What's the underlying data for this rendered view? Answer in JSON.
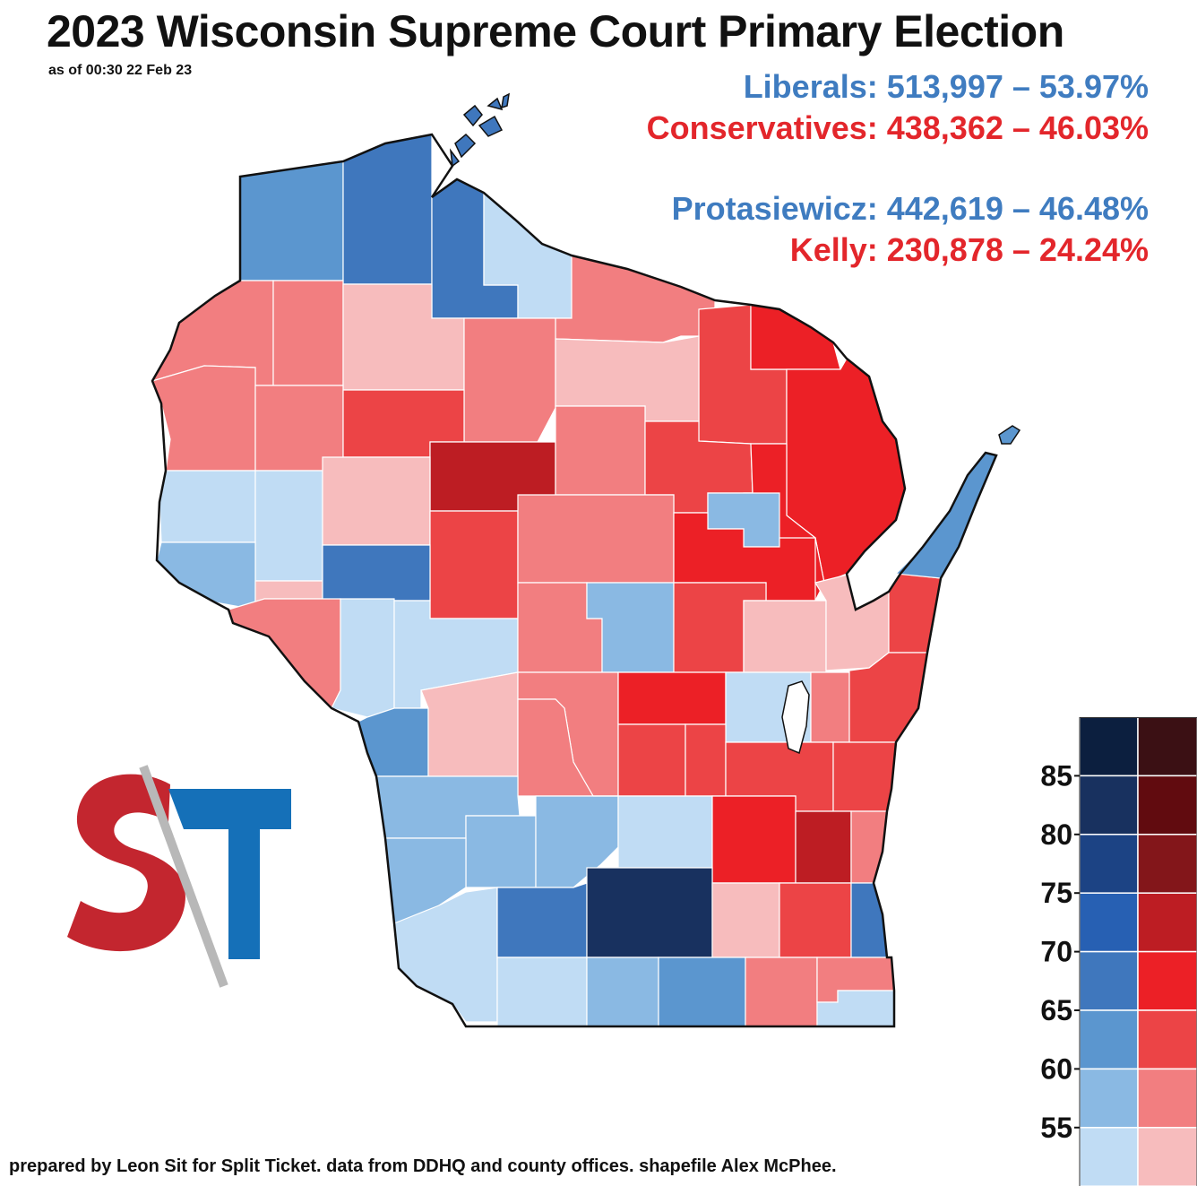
{
  "header": {
    "title": "2023 Wisconsin Supreme Court Primary Election",
    "as_of": "as of 00:30 22 Feb 23"
  },
  "results": [
    {
      "label": "Liberals: 513,997 – 53.97%",
      "party": "blue"
    },
    {
      "label": "Conservatives: 438,362 – 46.03%",
      "party": "red"
    },
    {
      "label": "Protasiewicz: 442,619 – 46.48%",
      "party": "blue"
    },
    {
      "label": "Kelly: 230,878 – 24.24%",
      "party": "red"
    }
  ],
  "legend": {
    "ticks": [
      "85",
      "80",
      "75",
      "70",
      "65",
      "60",
      "55"
    ],
    "blue_scale": [
      "#0c1f3f",
      "#18315f",
      "#1c4384",
      "#2760b3",
      "#3f77bd",
      "#5b96cf",
      "#8ab9e3",
      "#c0dcf4"
    ],
    "red_scale": [
      "#3b1014",
      "#610b0f",
      "#83161a",
      "#bd1d23",
      "#ec2026",
      "#ec4446",
      "#f27e80",
      "#f7bcbd"
    ]
  },
  "logo": {
    "text": "ST"
  },
  "footer": "prepared by Leon Sit for Split Ticket. data from DDHQ and county offices. shapefile Alex McPhee."
}
